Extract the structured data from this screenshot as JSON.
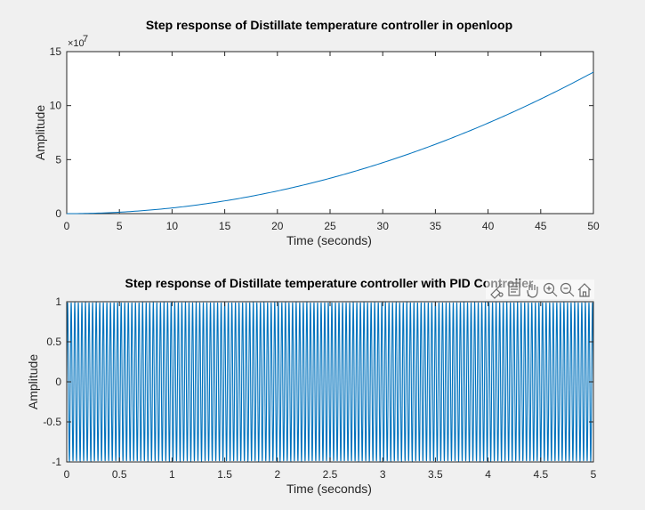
{
  "chart_data": [
    {
      "type": "line",
      "title": "Step response of Distillate temperature controller in openloop",
      "xlabel": "Time (seconds)",
      "ylabel": "Amplitude",
      "xlim": [
        0,
        50
      ],
      "ylim": [
        0,
        150000000
      ],
      "x_ticks": [
        "0",
        "5",
        "10",
        "15",
        "20",
        "25",
        "30",
        "35",
        "40",
        "45",
        "50"
      ],
      "y_ticks": [
        "0",
        "5",
        "10",
        "15"
      ],
      "y_exponent_label": "×10",
      "y_exponent": "7",
      "grid": false,
      "color": "#0072bd",
      "series": [
        {
          "x": [
            0,
            5,
            10,
            15,
            20,
            25,
            30,
            35,
            40,
            45,
            50
          ],
          "y": [
            0,
            1300000,
            5200000,
            11800000,
            21000000,
            32800000,
            47200000,
            64300000,
            84000000,
            106300000,
            131000000
          ]
        }
      ]
    },
    {
      "type": "line",
      "title": "Step response of Distillate temperature controller with PID Controller",
      "xlabel": "Time (seconds)",
      "ylabel": "Amplitude",
      "xlim": [
        0,
        5
      ],
      "ylim": [
        -1,
        1
      ],
      "x_ticks": [
        "0",
        "0.5",
        "1",
        "1.5",
        "2",
        "2.5",
        "3",
        "3.5",
        "4",
        "4.5",
        "5"
      ],
      "y_ticks": [
        "-1",
        "-0.5",
        "0",
        "0.5",
        "1"
      ],
      "grid": false,
      "color": "#0072bd",
      "series": [
        {
          "function": "y = 0.99 * sin(2*pi*f*t)",
          "frequency_hz": 29.5,
          "x_range": [
            0,
            5
          ]
        }
      ]
    }
  ],
  "toolbar": {
    "buttons": [
      "brush-icon",
      "data-tips-icon",
      "pan-icon",
      "zoom-in-icon",
      "zoom-out-icon",
      "home-icon"
    ]
  }
}
